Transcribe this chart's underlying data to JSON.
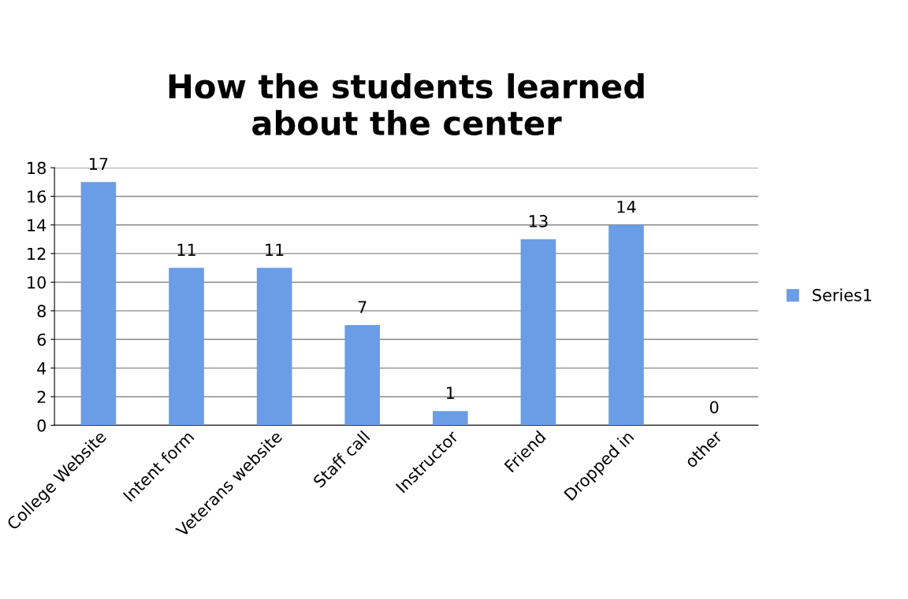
{
  "chart_data": {
    "type": "bar",
    "title": "How the students learned\nabout the center",
    "categories": [
      "College Website",
      "Intent form",
      "Veterans website",
      "Staff call",
      "Instructor",
      "Friend",
      "Dropped in",
      "other"
    ],
    "series": [
      {
        "name": "Series1",
        "color": "#6a9de6",
        "values": [
          17,
          11,
          11,
          7,
          1,
          13,
          14,
          0
        ]
      }
    ],
    "ylim": [
      0,
      18
    ],
    "yticks": [
      0,
      2,
      4,
      6,
      8,
      10,
      12,
      14,
      16,
      18
    ],
    "grid": "y",
    "legend": "right",
    "data_labels": true
  }
}
